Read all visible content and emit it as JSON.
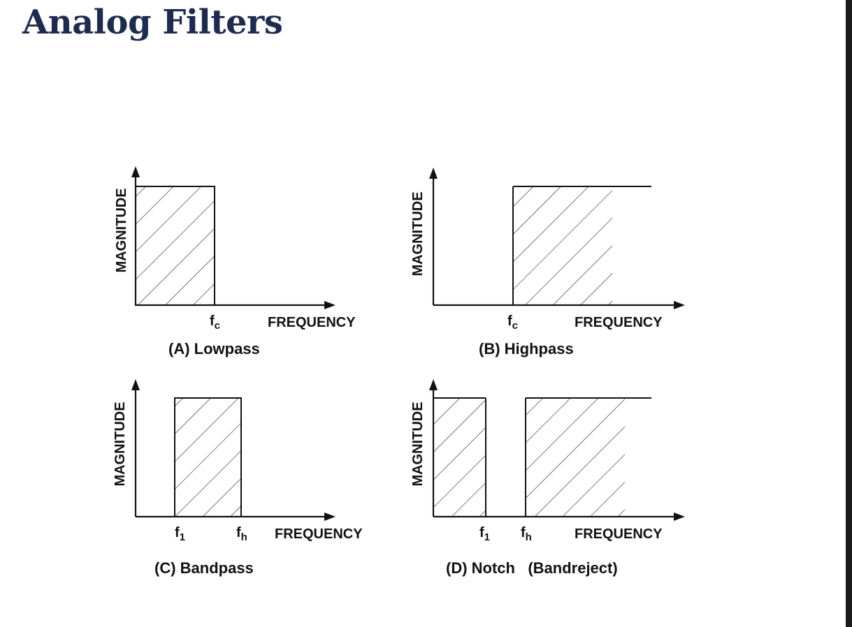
{
  "title": "Analog Filters",
  "axis": {
    "y_label": "MAGNITUDE",
    "x_label": "FREQUENCY",
    "f": "f",
    "sub_c": "c",
    "sub_1": "1",
    "sub_h": "h"
  },
  "panels": {
    "lowpass": {
      "caption": "(A) Lowpass"
    },
    "highpass": {
      "caption": "(B) Highpass"
    },
    "bandpass": {
      "caption": "(C) Bandpass"
    },
    "notch": {
      "caption": "(D) Notch   (Bandreject)"
    }
  },
  "colors": {
    "title": "#1e2b4e",
    "ink": "#111111",
    "border": "#1a1a1a"
  }
}
